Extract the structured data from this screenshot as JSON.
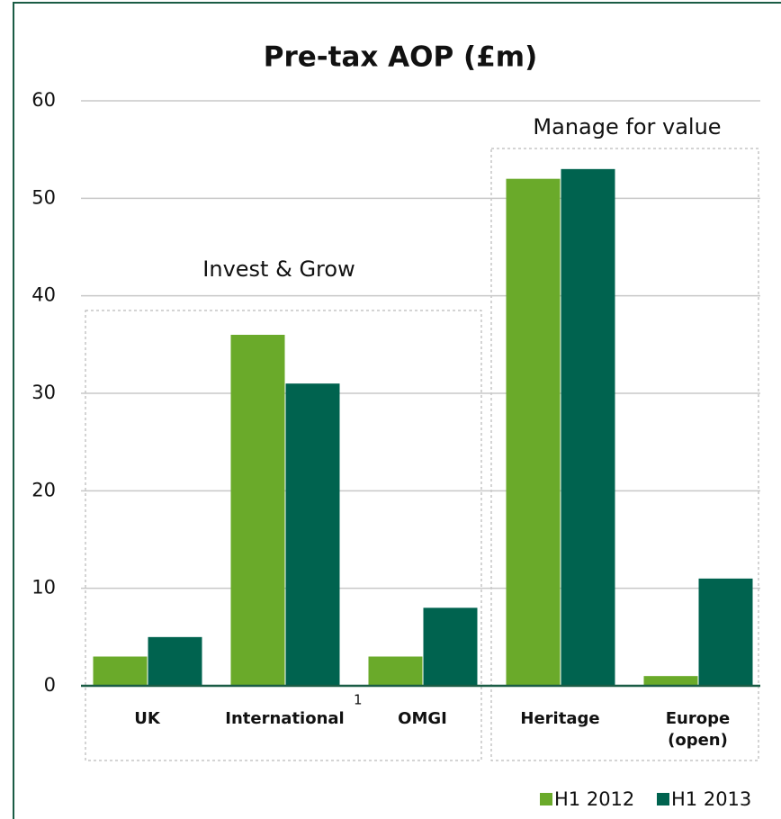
{
  "chart_data": {
    "type": "bar",
    "title": "Pre-tax AOP (£m)",
    "categories": [
      "UK",
      "International",
      "OMGI",
      "Heritage",
      "Europe (open)"
    ],
    "series": [
      {
        "name": "H1 2012",
        "color": "#6aaa2a",
        "values": [
          3,
          36,
          3,
          52,
          1
        ]
      },
      {
        "name": "H1 2013",
        "color": "#00634f",
        "values": [
          5,
          31,
          8,
          53,
          11
        ]
      }
    ],
    "ylim": [
      0,
      60
    ],
    "yticks": [
      0,
      10,
      20,
      30,
      40,
      50,
      60
    ],
    "grid": true,
    "legend": "bottom-right",
    "annotations": [
      "Invest & Grow",
      "Manage for value",
      "1"
    ]
  }
}
